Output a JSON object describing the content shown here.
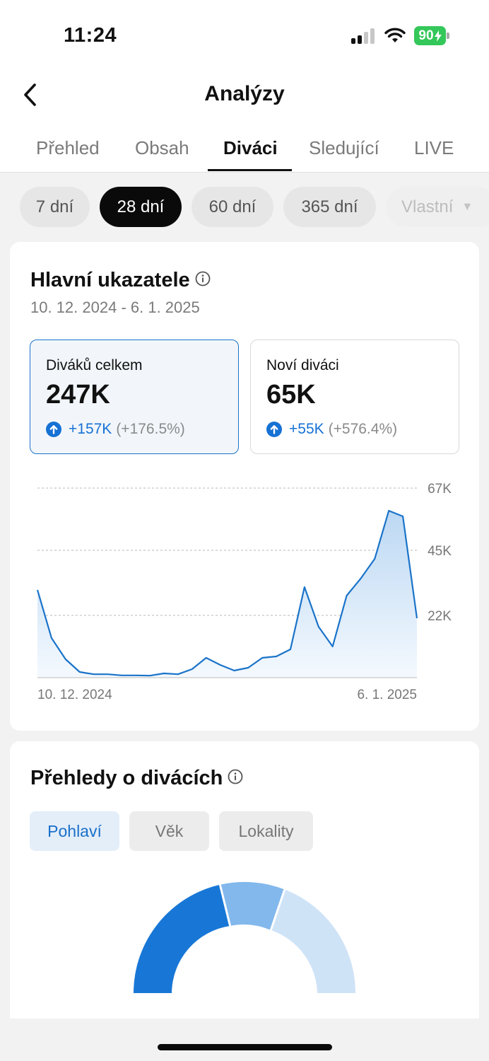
{
  "status_bar": {
    "time": "11:24",
    "battery": "90"
  },
  "header": {
    "title": "Analýzy"
  },
  "tabs": [
    {
      "label": "Přehled"
    },
    {
      "label": "Obsah"
    },
    {
      "label": "Diváci"
    },
    {
      "label": "Sledující"
    },
    {
      "label": "LIVE"
    }
  ],
  "active_tab": "Diváci",
  "date_ranges": [
    {
      "label": "7 dní"
    },
    {
      "label": "28 dní"
    },
    {
      "label": "60 dní"
    },
    {
      "label": "365 dní"
    },
    {
      "label": "Vlastní"
    }
  ],
  "selected_range": "28 dní",
  "key_metrics": {
    "title": "Hlavní ukazatele",
    "date_range": "10. 12. 2024 - 6. 1. 2025",
    "cards": [
      {
        "label": "Diváků celkem",
        "value": "247K",
        "delta": "+157K",
        "pct": "(+176.5%)"
      },
      {
        "label": "Noví diváci",
        "value": "65K",
        "delta": "+55K",
        "pct": "(+576.4%)"
      }
    ]
  },
  "chart_data": {
    "type": "area",
    "title": "",
    "xlabel": "",
    "ylabel": "",
    "x_labels": [
      "10. 12. 2024",
      "6. 1. 2025"
    ],
    "y_ticks": [
      "22K",
      "45K",
      "67K"
    ],
    "ylim": [
      0,
      67000
    ],
    "grid": true,
    "color": "#1a73c9",
    "values": [
      31000,
      14000,
      6500,
      2000,
      1200,
      1200,
      800,
      800,
      700,
      1500,
      1200,
      3000,
      7000,
      4500,
      2500,
      3500,
      7000,
      7500,
      10000,
      32000,
      18000,
      11000,
      29000,
      35000,
      42000,
      59000,
      57000,
      21000
    ]
  },
  "audience": {
    "title": "Přehledy o divácích",
    "tabs": [
      {
        "label": "Pohlaví"
      },
      {
        "label": "Věk"
      },
      {
        "label": "Lokality"
      }
    ],
    "active_tab": "Pohlaví",
    "donut_colors": [
      "#1877d6",
      "#82b8ec",
      "#cfe3f7"
    ]
  }
}
